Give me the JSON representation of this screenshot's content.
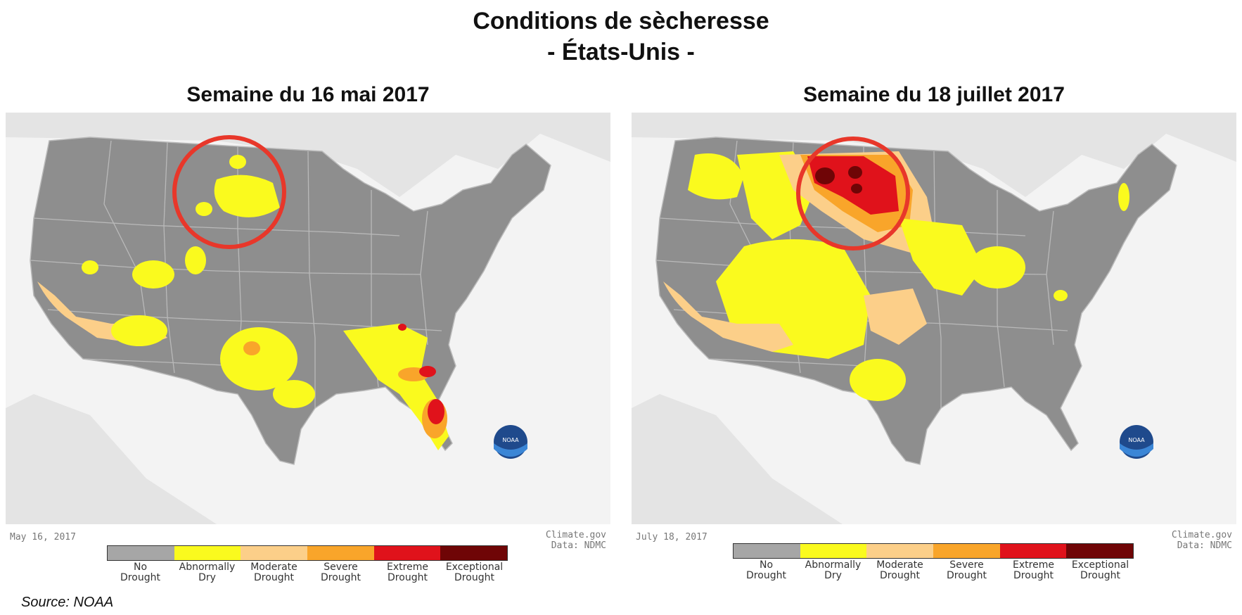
{
  "title_line1": "Conditions de sècheresse",
  "title_line2": "- États-Unis -",
  "source": "Source: NOAA",
  "legend": [
    {
      "label": "No\nDrought",
      "color": "#a6a6a6"
    },
    {
      "label": "Abnormally\nDry",
      "color": "#fafa1e"
    },
    {
      "label": "Moderate\nDrought",
      "color": "#fccf89"
    },
    {
      "label": "Severe\nDrought",
      "color": "#f9a52a"
    },
    {
      "label": "Extreme\nDrought",
      "color": "#e0121b"
    },
    {
      "label": "Exceptional\nDrought",
      "color": "#6f0506"
    }
  ],
  "maps": [
    {
      "heading": "Semaine du 16 mai 2017",
      "date": "May 16, 2017",
      "credit_line1": "Climate.gov",
      "credit_line2": "Data: NDMC",
      "logo": "NOAA"
    },
    {
      "heading": "Semaine du 18 juillet 2017",
      "date": "July 18, 2017",
      "credit_line1": "Climate.gov",
      "credit_line2": "Data: NDMC",
      "logo": "NOAA"
    }
  ],
  "colors": {
    "background_land": "#e9e9e9",
    "water": "#f4f4f4",
    "us_land": "#8e8e8e",
    "state_border": "#b9b9b9",
    "highlight_circle": "#e8372a"
  }
}
